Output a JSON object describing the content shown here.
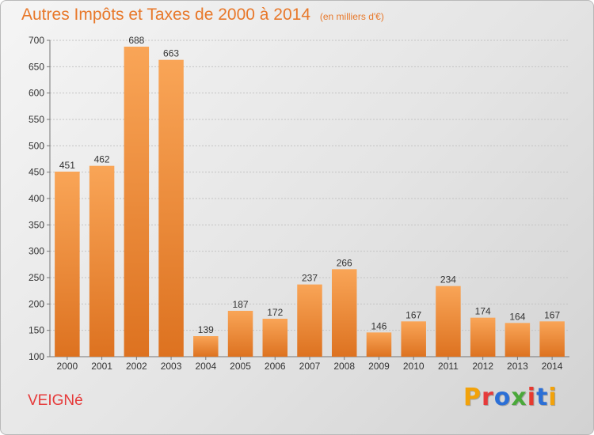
{
  "header": {
    "title": "Autres Impôts et Taxes de 2000 à 2014",
    "subtitle": "(en milliers d'€)"
  },
  "footer": {
    "commune": "VEIGNé",
    "brand": "Proxiti"
  },
  "colors": {
    "title": "#e8782a",
    "bar_top": "#f9a557",
    "bar_bottom": "#dd7220",
    "commune": "#e63a3a",
    "brand_letters": [
      "#f2a20a",
      "#e63a3a",
      "#2b6fd6",
      "#4aa83a",
      "#e6392f",
      "#2b6fd6",
      "#f2a20a"
    ]
  },
  "chart_data": {
    "type": "bar",
    "title": "Autres Impôts et Taxes de 2000 à 2014",
    "subtitle": "(en milliers d'€)",
    "xlabel": "",
    "ylabel": "",
    "categories": [
      "2000",
      "2001",
      "2002",
      "2003",
      "2004",
      "2005",
      "2006",
      "2007",
      "2008",
      "2009",
      "2010",
      "2011",
      "2012",
      "2013",
      "2014"
    ],
    "values": [
      451,
      462,
      688,
      663,
      139,
      187,
      172,
      237,
      266,
      146,
      167,
      234,
      174,
      164,
      167
    ],
    "ylim": [
      100,
      700
    ],
    "yticks": [
      100,
      150,
      200,
      250,
      300,
      350,
      400,
      450,
      500,
      550,
      600,
      650,
      700
    ],
    "grid": true
  }
}
